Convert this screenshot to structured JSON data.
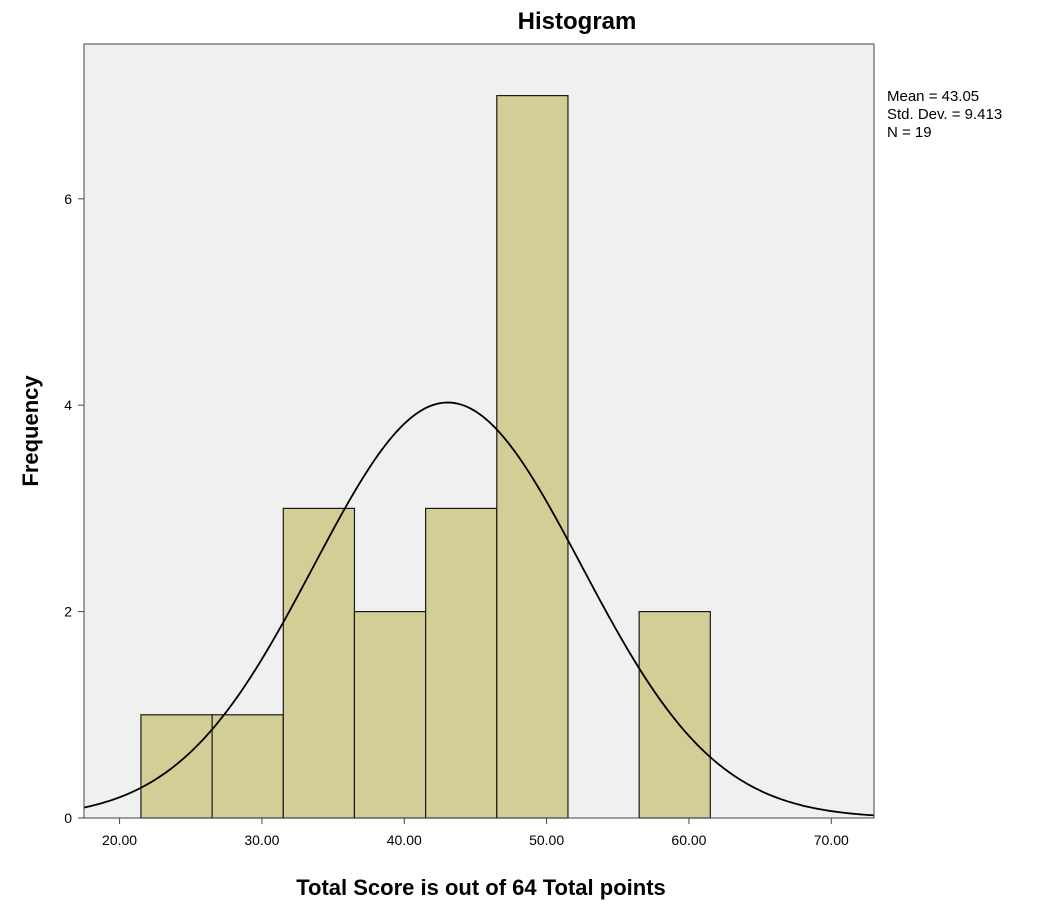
{
  "chart_data": {
    "type": "bar",
    "subtype": "histogram",
    "title": "Histogram",
    "xlabel": "Total Score is out of 64 Total points",
    "ylabel": "Frequency",
    "xlim": [
      17.5,
      73
    ],
    "ylim": [
      0,
      7.5
    ],
    "x_ticks": [
      20,
      30,
      40,
      50,
      60,
      70
    ],
    "x_tick_labels": [
      "20.00",
      "30.00",
      "40.00",
      "50.00",
      "60.00",
      "70.00"
    ],
    "y_ticks": [
      0,
      2,
      4,
      6
    ],
    "y_tick_labels": [
      "0",
      "2",
      "4",
      "6"
    ],
    "bin_width": 5,
    "bins": [
      {
        "start": 21.5,
        "end": 26.5,
        "count": 1
      },
      {
        "start": 26.5,
        "end": 31.5,
        "count": 1
      },
      {
        "start": 31.5,
        "end": 36.5,
        "count": 3
      },
      {
        "start": 36.5,
        "end": 41.5,
        "count": 2
      },
      {
        "start": 41.5,
        "end": 46.5,
        "count": 3
      },
      {
        "start": 46.5,
        "end": 51.5,
        "count": 7
      },
      {
        "start": 51.5,
        "end": 56.5,
        "count": 0
      },
      {
        "start": 56.5,
        "end": 61.5,
        "count": 2
      }
    ],
    "normal_curve": {
      "mean": 43.05,
      "sd": 9.413,
      "n": 19
    },
    "stats_labels": [
      "Mean = 43.05",
      "Std. Dev. = 9.413",
      "N = 19"
    ],
    "grid": false,
    "colors": {
      "bar_fill": "#d3cd96",
      "bar_stroke": "#1a1a1a",
      "plot_background": "#f0f0f0",
      "curve": "#000000"
    }
  }
}
